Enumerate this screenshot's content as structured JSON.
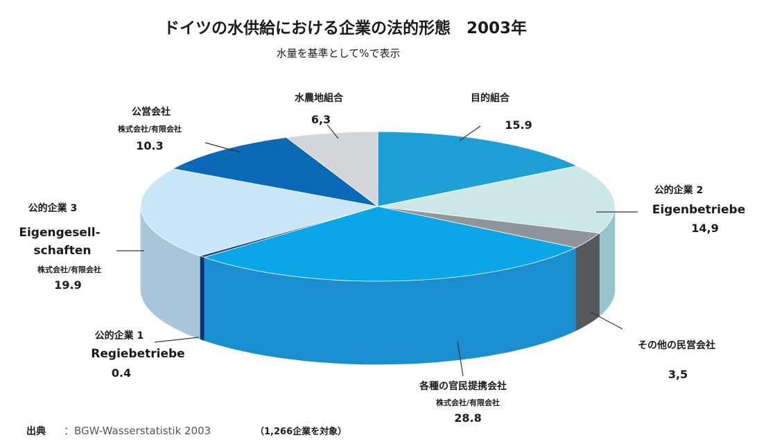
{
  "chart_data": {
    "type": "pie",
    "title": "ドイツの水供給における企業の法的形態　2003年",
    "subtitle": "水量を基準として%で表示",
    "slices": [
      {
        "jp": "目的組合",
        "en": "",
        "value_label": "15.9",
        "value": 15.9,
        "color": "#1e9fd6",
        "side": "#1584b5"
      },
      {
        "jp": "公的企業 2",
        "en": "Eigenbetriebe",
        "value_label": "14,9",
        "value": 14.9,
        "color": "#cce8e6",
        "side": "#98c4cb"
      },
      {
        "jp": "その他の民営会社",
        "en": "",
        "value_label": "3,5",
        "value": 3.5,
        "color": "#8f9599",
        "side": "#56595c"
      },
      {
        "jp": "各種の官民提携会社",
        "sub": "株式会社/有限会社",
        "value_label": "28.8",
        "value": 28.8,
        "color": "#0aa6e8",
        "side": "#1a8fd0"
      },
      {
        "jp": "公的企業 1",
        "en": "Regiebetriebe",
        "value_label": "0.4",
        "value": 0.4,
        "color": "#123f8c",
        "side": "#0c2f78"
      },
      {
        "jp": "公的企業 3",
        "en": "Eigengesell-\nschaften",
        "sub": "株式会社/有限会社",
        "value_label": "19.9",
        "value": 19.9,
        "color": "#c9e6f7",
        "side": "#a7c6da"
      },
      {
        "jp": "公営会社",
        "sub": "株式会社/有限会社",
        "value_label": "10.3",
        "value": 10.3,
        "color": "#0b6ab8",
        "side": "#0a5aa0"
      },
      {
        "jp": "水農地組合",
        "en": "",
        "value_label": "6,3",
        "value": 6.3,
        "color": "#d3d5d8",
        "side": "#b0b3b6"
      }
    ]
  },
  "source": {
    "label": "出典",
    "text": "：BGW-Wasserstatistik 2003",
    "note": "（1,266企業を対象）"
  }
}
